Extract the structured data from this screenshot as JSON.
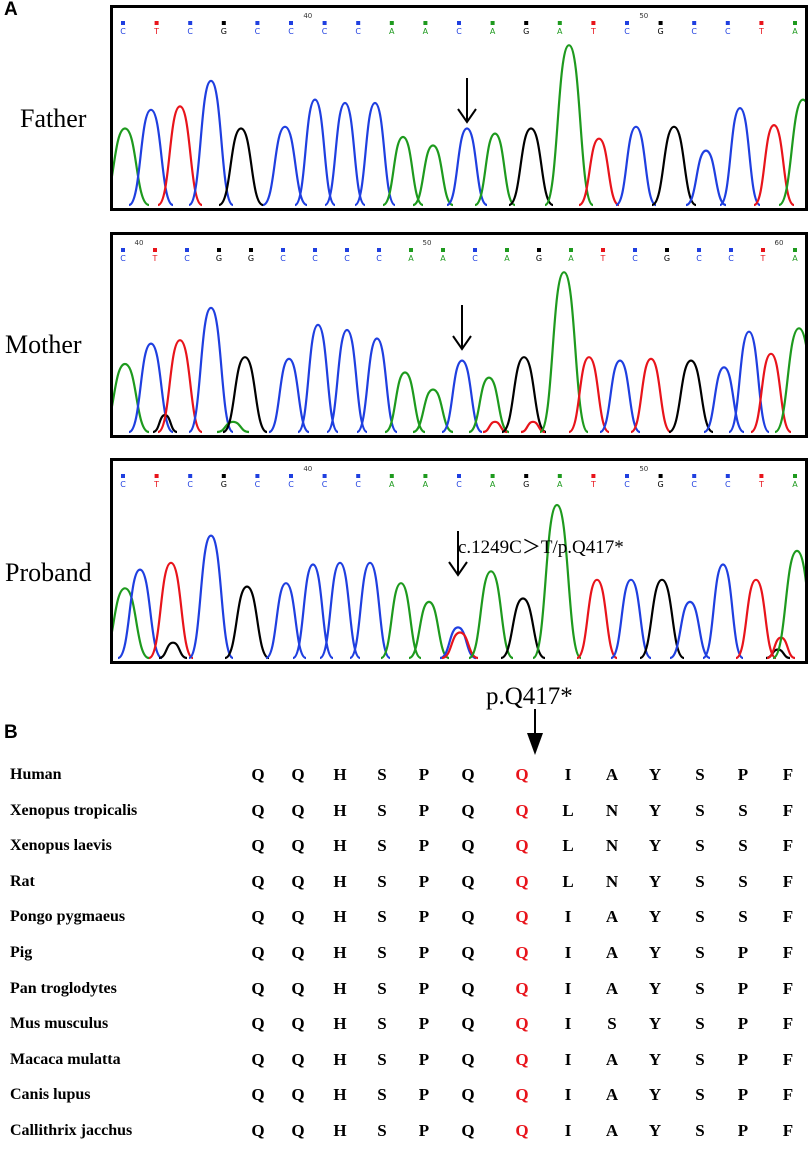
{
  "panel_a": {
    "label": "A"
  },
  "panel_b": {
    "label": "B"
  },
  "chromatograms": [
    {
      "name": "Father",
      "bases": [
        "C",
        "T",
        "C",
        "G",
        "C",
        "C",
        "C",
        "C",
        "A",
        "A",
        "C",
        "A",
        "G",
        "A",
        "T",
        "C",
        "G",
        "C",
        "C",
        "T",
        "A"
      ],
      "ruler": [
        {
          "after": 5,
          "text": "40"
        },
        {
          "after": 15,
          "text": "50"
        }
      ]
    },
    {
      "name": "Mother",
      "bases": [
        "C",
        "T",
        "C",
        "G",
        "G",
        "C",
        "C",
        "C",
        "C",
        "A",
        "A",
        "C",
        "A",
        "G",
        "A",
        "T",
        "C",
        "G",
        "C",
        "C",
        "T",
        "A"
      ],
      "ruler": [
        {
          "after": 0,
          "text": "40"
        },
        {
          "after": 9,
          "text": "50"
        },
        {
          "after": 20,
          "text": "60"
        }
      ]
    },
    {
      "name": "Proband",
      "bases": [
        "C",
        "T",
        "C",
        "G",
        "C",
        "C",
        "C",
        "C",
        "A",
        "A",
        "C",
        "A",
        "G",
        "A",
        "T",
        "C",
        "G",
        "C",
        "C",
        "T",
        "A"
      ],
      "ruler": [
        {
          "after": 5,
          "text": "40"
        },
        {
          "after": 15,
          "text": "50"
        }
      ]
    }
  ],
  "mutation": {
    "label": "c.1249C＞T/p.Q417*"
  },
  "protein_marker": "p.Q417*",
  "highlight_index": 6,
  "alignment": [
    {
      "species": "Human",
      "residues": [
        "Q",
        "Q",
        "H",
        "S",
        "P",
        "Q",
        "Q",
        "I",
        "A",
        "Y",
        "S",
        "P",
        "F"
      ]
    },
    {
      "species": "Xenopus tropicalis",
      "residues": [
        "Q",
        "Q",
        "H",
        "S",
        "P",
        "Q",
        "Q",
        "L",
        "N",
        "Y",
        "S",
        "S",
        "F"
      ]
    },
    {
      "species": "Xenopus laevis",
      "residues": [
        "Q",
        "Q",
        "H",
        "S",
        "P",
        "Q",
        "Q",
        "L",
        "N",
        "Y",
        "S",
        "S",
        "F"
      ]
    },
    {
      "species": "Rat",
      "residues": [
        "Q",
        "Q",
        "H",
        "S",
        "P",
        "Q",
        "Q",
        "L",
        "N",
        "Y",
        "S",
        "S",
        "F"
      ]
    },
    {
      "species": "Pongo pygmaeus",
      "residues": [
        "Q",
        "Q",
        "H",
        "S",
        "P",
        "Q",
        "Q",
        "I",
        "A",
        "Y",
        "S",
        "S",
        "F"
      ]
    },
    {
      "species": "Pig",
      "residues": [
        "Q",
        "Q",
        "H",
        "S",
        "P",
        "Q",
        "Q",
        "I",
        "A",
        "Y",
        "S",
        "P",
        "F"
      ]
    },
    {
      "species": "Pan troglodytes",
      "residues": [
        "Q",
        "Q",
        "H",
        "S",
        "P",
        "Q",
        "Q",
        "I",
        "A",
        "Y",
        "S",
        "P",
        "F"
      ]
    },
    {
      "species": "Mus musculus",
      "residues": [
        "Q",
        "Q",
        "H",
        "S",
        "P",
        "Q",
        "Q",
        "I",
        "S",
        "Y",
        "S",
        "P",
        "F"
      ]
    },
    {
      "species": "Macaca mulatta",
      "residues": [
        "Q",
        "Q",
        "H",
        "S",
        "P",
        "Q",
        "Q",
        "I",
        "A",
        "Y",
        "S",
        "P",
        "F"
      ]
    },
    {
      "species": "Canis lupus",
      "residues": [
        "Q",
        "Q",
        "H",
        "S",
        "P",
        "Q",
        "Q",
        "I",
        "A",
        "Y",
        "S",
        "P",
        "F"
      ]
    },
    {
      "species": "Callithrix jacchus",
      "residues": [
        "Q",
        "Q",
        "H",
        "S",
        "P",
        "Q",
        "Q",
        "I",
        "A",
        "Y",
        "S",
        "P",
        "F"
      ]
    }
  ],
  "colors": {
    "A": "#1e9a1e",
    "C": "#1f3fe0",
    "G": "#000000",
    "T": "#e8141b",
    "highlight": "#e8141b"
  }
}
